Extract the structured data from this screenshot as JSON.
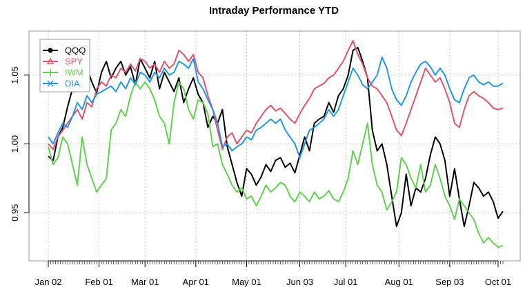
{
  "chart_data": {
    "type": "line",
    "title": "Intraday Performance YTD",
    "xlabel": "",
    "ylabel": "",
    "ylim": [
      0.915,
      1.082
    ],
    "y_ticks": [
      0.95,
      1.0,
      1.05
    ],
    "y_tick_labels": [
      "0.95",
      "1.00",
      "1.05"
    ],
    "x_tick_labels": [
      "Jan 02",
      "Feb 01",
      "Mar 01",
      "Apr 01",
      "May 01",
      "Jun 03",
      "Jul 01",
      "Aug 01",
      "Sep 03",
      "Oct 01"
    ],
    "x_tick_days": [
      0,
      21,
      40,
      61,
      82,
      104,
      123,
      145,
      166,
      186
    ],
    "x_range": [
      0,
      188
    ],
    "grid": true,
    "legend_position": "top-left",
    "series": [
      {
        "name": "QQQ",
        "color": "#000000",
        "marker": "circle",
        "x": [
          0,
          2,
          4,
          6,
          8,
          10,
          12,
          14,
          16,
          18,
          20,
          22,
          24,
          26,
          28,
          30,
          32,
          34,
          36,
          38,
          40,
          42,
          44,
          46,
          48,
          50,
          52,
          54,
          56,
          58,
          60,
          62,
          64,
          66,
          68,
          70,
          72,
          74,
          76,
          78,
          80,
          82,
          84,
          86,
          88,
          90,
          92,
          94,
          96,
          98,
          100,
          102,
          104,
          106,
          108,
          110,
          112,
          114,
          116,
          118,
          120,
          122,
          124,
          126,
          128,
          130,
          132,
          134,
          136,
          138,
          140,
          142,
          144,
          146,
          148,
          150,
          152,
          154,
          156,
          158,
          160,
          162,
          164,
          166,
          168,
          170,
          172,
          174,
          176,
          178,
          180,
          182,
          184,
          186,
          188
        ],
        "values": [
          0.991,
          0.988,
          1.005,
          1.012,
          1.027,
          1.04,
          1.048,
          1.043,
          1.055,
          1.045,
          1.037,
          1.052,
          1.06,
          1.048,
          1.055,
          1.06,
          1.05,
          1.056,
          1.043,
          1.062,
          1.055,
          1.048,
          1.06,
          1.04,
          1.052,
          1.045,
          1.038,
          1.048,
          1.03,
          1.04,
          1.048,
          1.036,
          1.03,
          1.012,
          1.02,
          1.015,
          1.025,
          0.998,
          0.985,
          0.972,
          0.962,
          0.982,
          0.978,
          0.97,
          0.976,
          0.985,
          0.98,
          0.988,
          0.99,
          0.983,
          0.986,
          0.979,
          0.992,
          1.005,
          0.995,
          1.015,
          1.018,
          1.02,
          1.03,
          1.023,
          1.035,
          1.04,
          1.05,
          1.068,
          1.07,
          1.06,
          1.048,
          1.01,
          0.995,
          1.0,
          0.985,
          0.962,
          0.94,
          0.95,
          0.978,
          0.955,
          0.968,
          0.965,
          0.975,
          0.992,
          1.005,
          1.0,
          0.988,
          0.962,
          0.982,
          0.96,
          0.94,
          0.955,
          0.972,
          0.968,
          0.962,
          0.965,
          0.958,
          0.946,
          0.951
        ]
      },
      {
        "name": "SPY",
        "color": "#DF536B",
        "marker": "triangle",
        "x": [
          0,
          2,
          4,
          6,
          8,
          10,
          12,
          14,
          16,
          18,
          20,
          22,
          24,
          26,
          28,
          30,
          32,
          34,
          36,
          38,
          40,
          42,
          44,
          46,
          48,
          50,
          52,
          54,
          56,
          58,
          60,
          62,
          64,
          66,
          68,
          70,
          72,
          74,
          76,
          78,
          80,
          82,
          84,
          86,
          88,
          90,
          92,
          94,
          96,
          98,
          100,
          102,
          104,
          106,
          108,
          110,
          112,
          114,
          116,
          118,
          120,
          122,
          124,
          126,
          128,
          130,
          132,
          134,
          136,
          138,
          140,
          142,
          144,
          146,
          148,
          150,
          152,
          154,
          156,
          158,
          160,
          162,
          164,
          166,
          168,
          170,
          172,
          174,
          176,
          178,
          180,
          182,
          184,
          186,
          188
        ],
        "values": [
          1.0,
          0.996,
          1.005,
          1.01,
          1.015,
          1.02,
          1.025,
          1.018,
          1.03,
          1.027,
          1.04,
          1.045,
          1.042,
          1.05,
          1.048,
          1.055,
          1.052,
          1.058,
          1.053,
          1.062,
          1.06,
          1.055,
          1.058,
          1.052,
          1.06,
          1.055,
          1.058,
          1.068,
          1.065,
          1.06,
          1.065,
          1.052,
          1.048,
          1.035,
          1.025,
          1.01,
          0.996,
          1.005,
          1.008,
          1.0,
          1.005,
          1.01,
          1.008,
          1.015,
          1.02,
          1.025,
          1.028,
          1.024,
          1.026,
          1.022,
          1.018,
          1.015,
          1.022,
          1.028,
          1.033,
          1.04,
          1.042,
          1.044,
          1.048,
          1.05,
          1.055,
          1.06,
          1.068,
          1.075,
          1.065,
          1.058,
          1.048,
          1.042,
          1.04,
          1.035,
          1.03,
          1.02,
          1.01,
          1.006,
          1.015,
          1.025,
          1.035,
          1.045,
          1.055,
          1.05,
          1.045,
          1.048,
          1.04,
          1.03,
          1.015,
          1.012,
          1.025,
          1.035,
          1.038,
          1.035,
          1.033,
          1.03,
          1.026,
          1.025,
          1.026
        ]
      },
      {
        "name": "IWM",
        "color": "#61D04F",
        "marker": "plus",
        "x": [
          0,
          2,
          4,
          6,
          8,
          10,
          12,
          14,
          16,
          18,
          20,
          22,
          24,
          26,
          28,
          30,
          32,
          34,
          36,
          38,
          40,
          42,
          44,
          46,
          48,
          50,
          52,
          54,
          56,
          58,
          60,
          62,
          64,
          66,
          68,
          70,
          72,
          74,
          76,
          78,
          80,
          82,
          84,
          86,
          88,
          90,
          92,
          94,
          96,
          98,
          100,
          102,
          104,
          106,
          108,
          110,
          112,
          114,
          116,
          118,
          120,
          122,
          124,
          126,
          128,
          130,
          132,
          134,
          136,
          138,
          140,
          142,
          144,
          146,
          148,
          150,
          152,
          154,
          156,
          158,
          160,
          162,
          164,
          166,
          168,
          170,
          172,
          174,
          176,
          178,
          180,
          182,
          184,
          186,
          188
        ],
        "values": [
          0.998,
          0.985,
          0.99,
          1.005,
          1.0,
          0.985,
          0.97,
          1.005,
          0.985,
          0.975,
          0.965,
          0.97,
          0.975,
          1.01,
          1.015,
          1.025,
          1.02,
          1.035,
          1.045,
          1.04,
          1.045,
          1.04,
          1.032,
          1.02,
          1.015,
          1.0,
          1.03,
          1.045,
          1.04,
          1.025,
          1.018,
          1.032,
          1.03,
          1.022,
          0.998,
          1.0,
          0.985,
          0.978,
          0.97,
          0.965,
          0.968,
          0.96,
          0.962,
          0.955,
          0.962,
          0.97,
          0.965,
          0.968,
          0.972,
          0.97,
          0.962,
          0.958,
          0.965,
          0.962,
          0.958,
          0.965,
          0.96,
          0.962,
          0.966,
          0.96,
          0.958,
          0.965,
          0.975,
          0.995,
          0.985,
          1.0,
          1.015,
          0.985,
          0.97,
          0.965,
          0.952,
          0.958,
          0.965,
          0.99,
          0.985,
          0.975,
          0.968,
          0.985,
          0.965,
          0.97,
          0.985,
          0.975,
          0.962,
          0.955,
          0.945,
          0.96,
          0.955,
          0.95,
          0.945,
          0.935,
          0.928,
          0.932,
          0.928,
          0.925,
          0.926
        ]
      },
      {
        "name": "DIA",
        "color": "#2297E6",
        "marker": "x",
        "x": [
          0,
          2,
          4,
          6,
          8,
          10,
          12,
          14,
          16,
          18,
          20,
          22,
          24,
          26,
          28,
          30,
          32,
          34,
          36,
          38,
          40,
          42,
          44,
          46,
          48,
          50,
          52,
          54,
          56,
          58,
          60,
          62,
          64,
          66,
          68,
          70,
          72,
          74,
          76,
          78,
          80,
          82,
          84,
          86,
          88,
          90,
          92,
          94,
          96,
          98,
          100,
          102,
          104,
          106,
          108,
          110,
          112,
          114,
          116,
          118,
          120,
          122,
          124,
          126,
          128,
          130,
          132,
          134,
          136,
          138,
          140,
          142,
          144,
          146,
          148,
          150,
          152,
          154,
          156,
          158,
          160,
          162,
          164,
          166,
          168,
          170,
          172,
          174,
          176,
          178,
          180,
          182,
          184,
          186,
          188
        ],
        "values": [
          1.005,
          1.0,
          1.008,
          1.015,
          1.012,
          1.02,
          1.03,
          1.025,
          1.035,
          1.03,
          1.036,
          1.038,
          1.04,
          1.042,
          1.038,
          1.045,
          1.04,
          1.048,
          1.043,
          1.052,
          1.05,
          1.045,
          1.052,
          1.048,
          1.055,
          1.05,
          1.052,
          1.06,
          1.058,
          1.055,
          1.062,
          1.045,
          1.04,
          1.032,
          1.025,
          1.015,
          0.998,
          1.0,
          0.995,
          0.998,
          1.0,
          1.005,
          1.003,
          1.01,
          1.012,
          1.015,
          1.018,
          1.015,
          1.018,
          1.01,
          1.005,
          1.0,
          0.99,
          1.0,
          1.01,
          1.012,
          1.015,
          1.018,
          1.025,
          1.02,
          1.025,
          1.035,
          1.045,
          1.055,
          1.05,
          1.043,
          1.04,
          1.045,
          1.05,
          1.063,
          1.055,
          1.04,
          1.032,
          1.028,
          1.035,
          1.045,
          1.052,
          1.058,
          1.06,
          1.056,
          1.05,
          1.055,
          1.05,
          1.04,
          1.032,
          1.03,
          1.04,
          1.048,
          1.05,
          1.045,
          1.043,
          1.045,
          1.042,
          1.042,
          1.044
        ]
      }
    ]
  }
}
